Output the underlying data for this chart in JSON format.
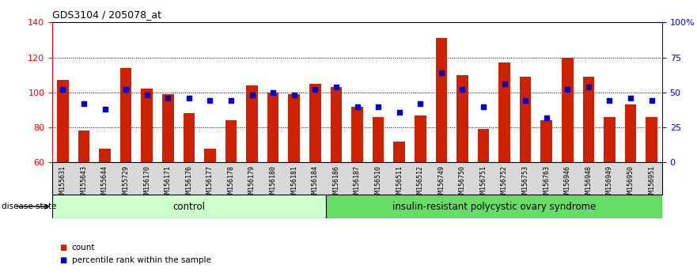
{
  "title": "GDS3104 / 205078_at",
  "samples": [
    "GSM155631",
    "GSM155643",
    "GSM155644",
    "GSM155729",
    "GSM156170",
    "GSM156171",
    "GSM156176",
    "GSM156177",
    "GSM156178",
    "GSM156179",
    "GSM156180",
    "GSM156181",
    "GSM156184",
    "GSM156186",
    "GSM156187",
    "GSM156510",
    "GSM156511",
    "GSM156512",
    "GSM156749",
    "GSM156750",
    "GSM156751",
    "GSM156752",
    "GSM156753",
    "GSM156763",
    "GSM156946",
    "GSM156948",
    "GSM156949",
    "GSM156950",
    "GSM156951"
  ],
  "counts": [
    107,
    78,
    68,
    114,
    102,
    99,
    88,
    68,
    84,
    104,
    100,
    99,
    105,
    103,
    92,
    86,
    72,
    87,
    131,
    110,
    79,
    117,
    109,
    84,
    120,
    109,
    86,
    93,
    86
  ],
  "percentile_ranks": [
    52,
    42,
    38,
    52,
    48,
    46,
    46,
    44,
    44,
    48,
    50,
    48,
    52,
    54,
    40,
    40,
    36,
    42,
    64,
    52,
    40,
    56,
    44,
    32,
    52,
    54,
    44,
    46,
    44
  ],
  "control_count": 13,
  "ylim_left": [
    60,
    140
  ],
  "ylim_right": [
    0,
    100
  ],
  "yticks_left": [
    60,
    80,
    100,
    120,
    140
  ],
  "yticks_right": [
    0,
    25,
    50,
    75,
    100
  ],
  "ytick_labels_right": [
    "0",
    "25",
    "50",
    "75",
    "100%"
  ],
  "bar_color": "#cc2200",
  "dot_color": "#0000cc",
  "control_bg": "#ccffcc",
  "disease_bg": "#66dd66",
  "xticklabel_bg": "#d8d8d8"
}
